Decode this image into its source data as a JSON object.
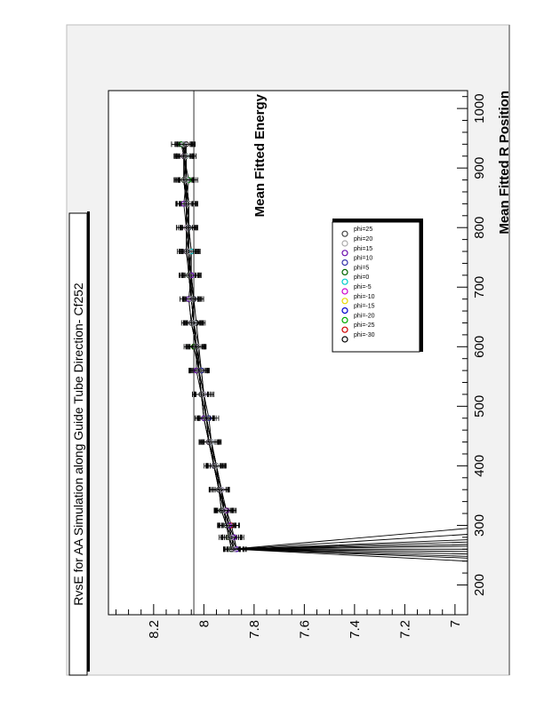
{
  "title": "RvsE for AA Simulation along Guide Tube Direction- Cf252",
  "chart_data": {
    "type": "scatter",
    "title": "RvsE for AA Simulation along Guide Tube Direction- Cf252",
    "xlabel": "Mean Fitted R Position",
    "ylabel": "Mean Fitted Energy",
    "xlim": [
      150,
      1030
    ],
    "ylim": [
      6.95,
      8.38
    ],
    "x_ticks": [
      "200",
      "300",
      "400",
      "500",
      "600",
      "700",
      "800",
      "900",
      "1000"
    ],
    "y_ticks": [
      "7",
      "7.2",
      "7.4",
      "7.6",
      "7.8",
      "8",
      "8.2"
    ],
    "reference_line_y": 8.04,
    "orientation": "rotated 90° counter-clockwise on page",
    "legend_position": "center-right",
    "grid": false,
    "x_common": [
      260,
      280,
      300,
      325,
      360,
      400,
      440,
      480,
      520,
      560,
      600,
      640,
      680,
      720,
      760,
      800,
      840,
      880,
      920,
      940
    ],
    "series": [
      {
        "name": "phi=-30",
        "color": "#000000",
        "values": [
          7.88,
          7.89,
          7.9,
          7.91,
          7.93,
          7.95,
          7.97,
          7.99,
          8.0,
          8.01,
          8.02,
          8.03,
          8.04,
          8.05,
          8.05,
          8.06,
          8.06,
          8.07,
          8.07,
          8.07
        ],
        "end_value": 6.95
      },
      {
        "name": "phi=-25",
        "color": "#d00000",
        "values": [
          7.87,
          7.88,
          7.89,
          7.91,
          7.94,
          7.96,
          7.98,
          7.99,
          8.01,
          8.02,
          8.03,
          8.04,
          8.05,
          8.05,
          8.06,
          8.06,
          8.07,
          8.07,
          8.08,
          8.07
        ],
        "end_value": 6.95
      },
      {
        "name": "phi=-20",
        "color": "#00aa00",
        "values": [
          7.89,
          7.9,
          7.91,
          7.92,
          7.94,
          7.96,
          7.98,
          8.0,
          8.01,
          8.02,
          8.03,
          8.05,
          8.06,
          8.05,
          8.06,
          8.07,
          8.07,
          8.06,
          8.08,
          8.09
        ],
        "end_value": 6.95
      },
      {
        "name": "phi=-15",
        "color": "#0000cc",
        "values": [
          7.87,
          7.88,
          7.9,
          7.92,
          7.93,
          7.95,
          7.97,
          7.99,
          8.0,
          8.02,
          8.03,
          8.04,
          8.04,
          8.05,
          8.06,
          8.06,
          8.07,
          8.08,
          8.07,
          8.08
        ],
        "end_value": 6.95
      },
      {
        "name": "phi=-10",
        "color": "#e6d800",
        "values": [
          7.88,
          7.9,
          7.91,
          7.92,
          7.94,
          7.95,
          7.97,
          7.99,
          8.01,
          8.02,
          8.04,
          8.04,
          8.05,
          8.06,
          8.06,
          8.07,
          8.06,
          8.08,
          8.08,
          8.07
        ],
        "end_value": 6.95
      },
      {
        "name": "phi=-5",
        "color": "#cc00cc",
        "values": [
          7.88,
          7.89,
          7.9,
          7.92,
          7.93,
          7.96,
          7.98,
          7.99,
          8.0,
          8.02,
          8.03,
          8.04,
          8.05,
          8.05,
          8.06,
          8.07,
          8.07,
          8.07,
          8.08,
          8.08
        ],
        "end_value": 6.95
      },
      {
        "name": "phi=0",
        "color": "#00cccc",
        "values": [
          7.87,
          7.89,
          7.91,
          7.92,
          7.94,
          7.96,
          7.97,
          7.99,
          8.01,
          8.02,
          8.03,
          8.04,
          8.05,
          8.06,
          8.05,
          8.06,
          8.07,
          8.07,
          8.07,
          8.08
        ],
        "end_value": 6.95
      },
      {
        "name": "phi=5",
        "color": "#006600",
        "values": [
          7.89,
          7.9,
          7.91,
          7.93,
          7.94,
          7.95,
          7.98,
          8.0,
          8.01,
          8.02,
          8.04,
          8.04,
          8.05,
          8.06,
          8.06,
          8.06,
          8.07,
          8.08,
          8.07,
          8.09
        ],
        "end_value": 6.95
      },
      {
        "name": "phi=10",
        "color": "#3333aa",
        "values": [
          7.88,
          7.89,
          7.9,
          7.92,
          7.93,
          7.95,
          7.97,
          7.98,
          8.0,
          8.01,
          8.03,
          8.04,
          8.04,
          8.05,
          8.06,
          8.06,
          8.06,
          8.07,
          8.08,
          8.07
        ],
        "end_value": 6.95
      },
      {
        "name": "phi=15",
        "color": "#6a0dad",
        "values": [
          7.87,
          7.88,
          7.9,
          7.91,
          7.94,
          7.96,
          7.98,
          8.0,
          8.01,
          8.03,
          8.03,
          8.05,
          8.06,
          8.05,
          8.07,
          8.07,
          8.08,
          8.07,
          8.08,
          8.08
        ],
        "end_value": 6.95
      },
      {
        "name": "phi=20",
        "color": "#aaaaaa",
        "values": [
          7.88,
          7.89,
          7.91,
          7.92,
          7.93,
          7.95,
          7.97,
          7.99,
          8.0,
          8.02,
          8.02,
          8.04,
          8.05,
          8.06,
          8.06,
          8.07,
          8.06,
          8.07,
          8.07,
          8.08
        ],
        "end_value": 6.95
      },
      {
        "name": "phi=25",
        "color": "#444444",
        "values": [
          7.89,
          7.9,
          7.91,
          7.93,
          7.94,
          7.96,
          7.98,
          7.99,
          8.01,
          8.02,
          8.03,
          8.05,
          8.04,
          8.06,
          8.07,
          8.06,
          8.07,
          8.08,
          8.08,
          8.07
        ],
        "end_value": 6.95
      }
    ],
    "end_x": [
      240,
      245,
      248,
      252,
      256,
      260,
      265,
      268,
      272,
      276,
      285,
      295
    ]
  }
}
